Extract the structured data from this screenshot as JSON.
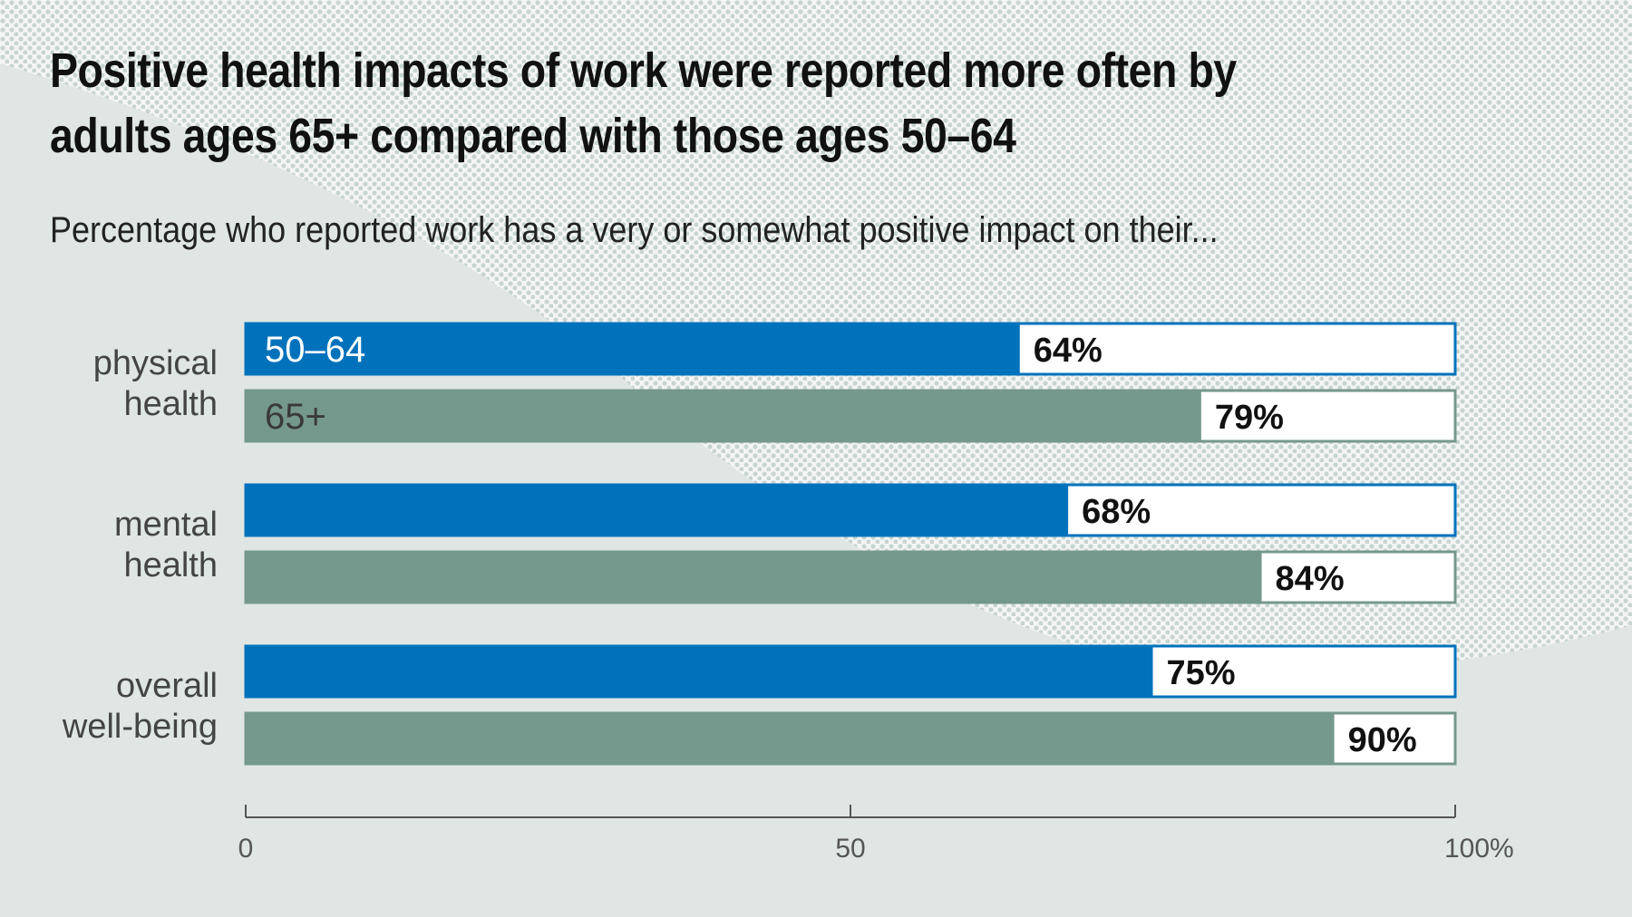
{
  "title": "Positive health impacts of work were reported more often by adults ages 65+ compared with those ages 50–64",
  "subtitle": "Percentage who reported work has a very or somewhat positive impact on their...",
  "colors": {
    "series_50_64": "#0072bc",
    "series_65_plus": "#75988d",
    "background_light": "#dfe6e3"
  },
  "chart_data": {
    "type": "bar",
    "orientation": "horizontal",
    "categories": [
      "physical\nhealth",
      "mental\nhealth",
      "overall\nwell-being"
    ],
    "series": [
      {
        "name": "50–64",
        "values": [
          64,
          68,
          75
        ]
      },
      {
        "name": "65+",
        "values": [
          79,
          84,
          90
        ]
      }
    ],
    "value_labels": [
      [
        "64%",
        "68%",
        "75%"
      ],
      [
        "79%",
        "84%",
        "90%"
      ]
    ],
    "xlim": [
      0,
      100
    ],
    "ticks": [
      "0",
      "50",
      "100%"
    ],
    "tick_values": [
      0,
      50,
      100
    ],
    "legend": "inline on first bars",
    "grid": false
  }
}
